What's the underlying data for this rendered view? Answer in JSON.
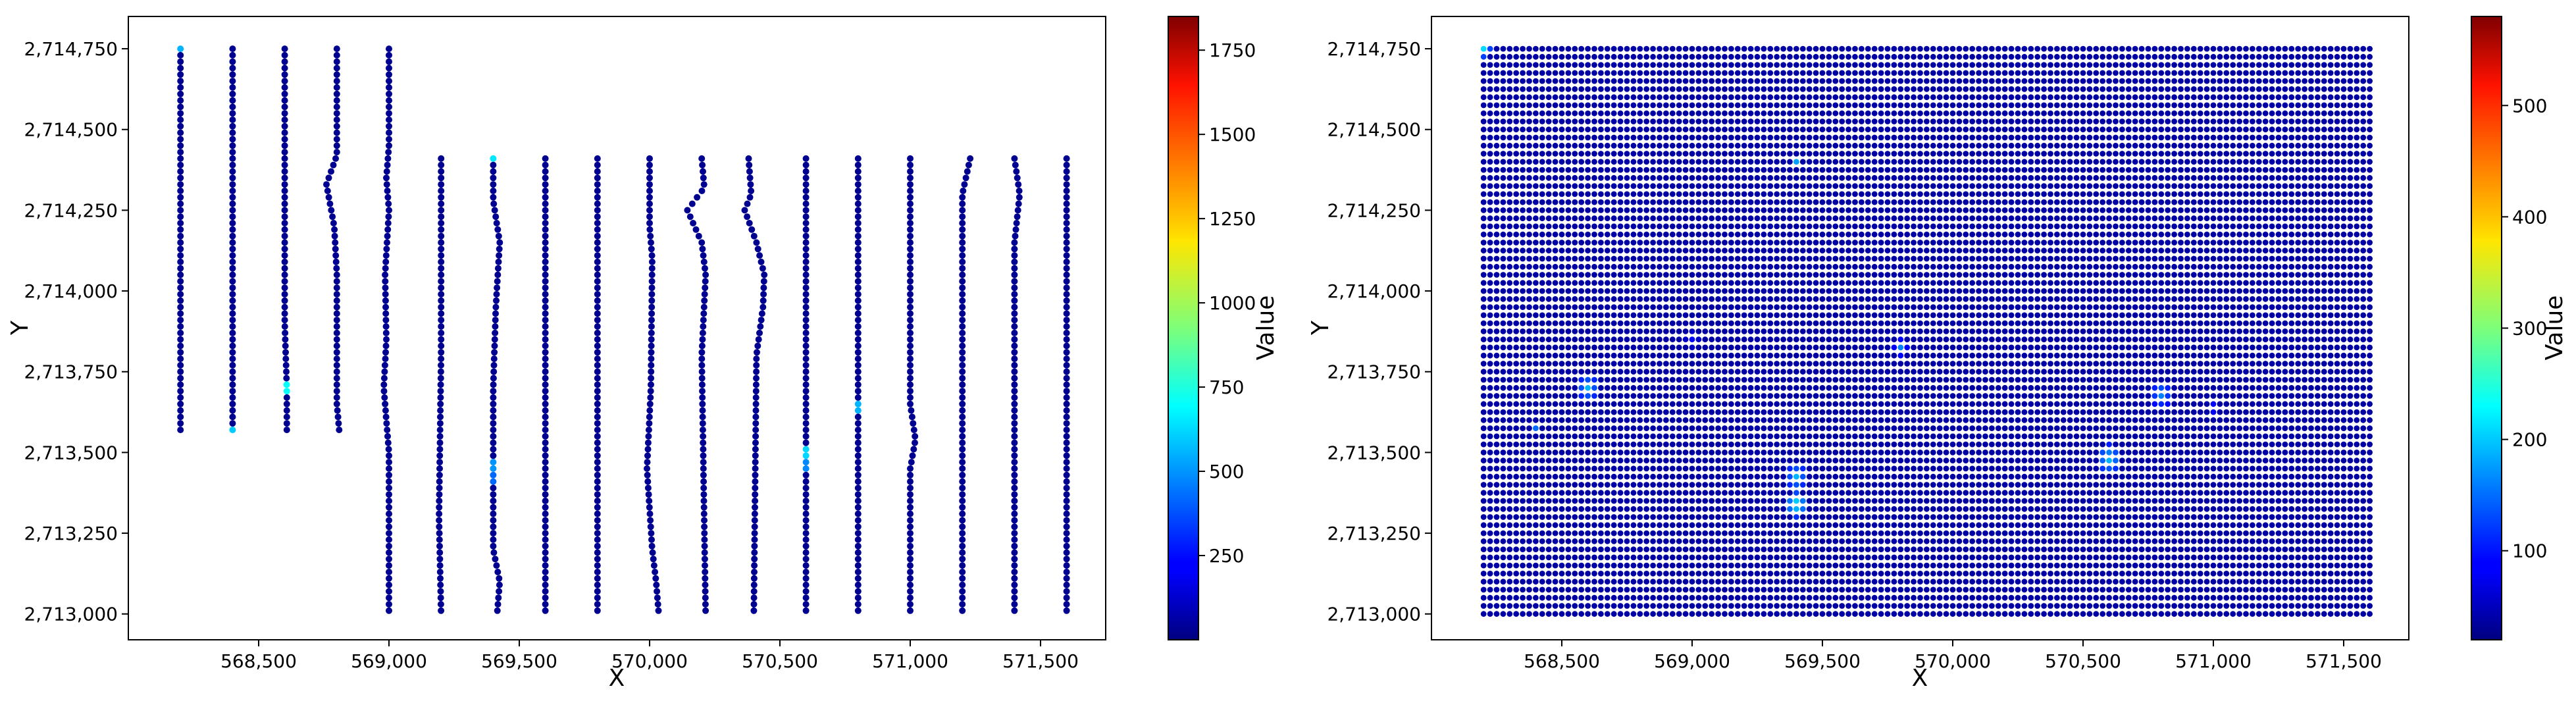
{
  "chart_data": [
    {
      "type": "scatter",
      "xlabel": "X",
      "ylabel": "Y",
      "xlim": [
        568000,
        571750
      ],
      "ylim": [
        2712920,
        2714850
      ],
      "xticks": [
        568500,
        569000,
        569500,
        570000,
        570500,
        571000,
        571500
      ],
      "xtick_labels": [
        "568,500",
        "569,000",
        "569,500",
        "570,000",
        "570,500",
        "571,000",
        "571,500"
      ],
      "yticks": [
        2713000,
        2713250,
        2713500,
        2713750,
        2714000,
        2714250,
        2714500,
        2714750
      ],
      "ytick_labels": [
        "2,713,000",
        "2,713,250",
        "2,713,500",
        "2,713,750",
        "2,714,000",
        "2,714,250",
        "2,714,500",
        "2,714,750"
      ],
      "grid": false,
      "colorbar": {
        "label": "Value",
        "colormap": "jet",
        "range": [
          0,
          1850
        ],
        "ticks": [
          250,
          500,
          750,
          1000,
          1250,
          1500,
          1750
        ],
        "tick_labels": [
          "250",
          "500",
          "750",
          "1000",
          "1250",
          "1500",
          "1750"
        ]
      },
      "survey_lines": [
        {
          "x": 568200,
          "y_range": [
            2713560,
            2714750
          ],
          "wiggle": []
        },
        {
          "x": 568400,
          "y_range": [
            2713560,
            2714750
          ],
          "wiggle": []
        },
        {
          "x": 568600,
          "y_range": [
            2713560,
            2714750
          ],
          "wiggle": [
            [
              2714500,
              0
            ],
            [
              2713900,
              0
            ],
            [
              2713700,
              8
            ]
          ]
        },
        {
          "x": 568800,
          "y_range": [
            2713560,
            2714750
          ],
          "wiggle": [
            [
              2714750,
              0
            ],
            [
              2714420,
              0
            ],
            [
              2714330,
              -40
            ],
            [
              2714200,
              -10
            ],
            [
              2714050,
              0
            ],
            [
              2713650,
              0
            ],
            [
              2713560,
              10
            ]
          ]
        },
        {
          "x": 569000,
          "y_range": [
            2713000,
            2714750
          ],
          "wiggle": [
            [
              2714750,
              0
            ],
            [
              2714450,
              0
            ],
            [
              2714350,
              -10
            ],
            [
              2714250,
              0
            ],
            [
              2714050,
              -15
            ],
            [
              2713850,
              -10
            ],
            [
              2713700,
              -20
            ],
            [
              2713500,
              0
            ],
            [
              2713000,
              0
            ]
          ]
        },
        {
          "x": 569200,
          "y_range": [
            2713000,
            2714410
          ],
          "wiggle": [
            [
              2714410,
              0
            ],
            [
              2713800,
              0
            ],
            [
              2713300,
              -8
            ],
            [
              2713000,
              0
            ]
          ]
        },
        {
          "x": 569400,
          "y_range": [
            2713000,
            2714410
          ],
          "wiggle": [
            [
              2714410,
              0
            ],
            [
              2714280,
              0
            ],
            [
              2714150,
              25
            ],
            [
              2713950,
              10
            ],
            [
              2713700,
              0
            ],
            [
              2713200,
              0
            ],
            [
              2713100,
              25
            ],
            [
              2713000,
              15
            ]
          ]
        },
        {
          "x": 569600,
          "y_range": [
            2713000,
            2714410
          ],
          "wiggle": []
        },
        {
          "x": 569800,
          "y_range": [
            2713000,
            2714410
          ],
          "wiggle": []
        },
        {
          "x": 570000,
          "y_range": [
            2713000,
            2714410
          ],
          "wiggle": [
            [
              2714410,
              0
            ],
            [
              2714200,
              0
            ],
            [
              2714100,
              10
            ],
            [
              2713700,
              5
            ],
            [
              2713450,
              -10
            ],
            [
              2713200,
              10
            ],
            [
              2713100,
              25
            ],
            [
              2713000,
              35
            ]
          ]
        },
        {
          "x": 570200,
          "y_range": [
            2713000,
            2714410
          ],
          "wiggle": [
            [
              2714410,
              0
            ],
            [
              2714320,
              10
            ],
            [
              2714250,
              -55
            ],
            [
              2714150,
              0
            ],
            [
              2714050,
              15
            ],
            [
              2713800,
              0
            ],
            [
              2713000,
              15
            ]
          ]
        },
        {
          "x": 570400,
          "y_range": [
            2713000,
            2714410
          ],
          "wiggle": [
            [
              2714410,
              -20
            ],
            [
              2714300,
              -10
            ],
            [
              2714250,
              -35
            ],
            [
              2714150,
              10
            ],
            [
              2714050,
              40
            ],
            [
              2713950,
              35
            ],
            [
              2713800,
              10
            ],
            [
              2713000,
              0
            ]
          ]
        },
        {
          "x": 570600,
          "y_range": [
            2713000,
            2714410
          ],
          "wiggle": []
        },
        {
          "x": 570800,
          "y_range": [
            2713000,
            2714410
          ],
          "wiggle": []
        },
        {
          "x": 571000,
          "y_range": [
            2713000,
            2714410
          ],
          "wiggle": [
            [
              2714410,
              0
            ],
            [
              2713650,
              0
            ],
            [
              2713540,
              20
            ],
            [
              2713450,
              0
            ],
            [
              2713150,
              0
            ],
            [
              2713000,
              0
            ]
          ]
        },
        {
          "x": 571200,
          "y_range": [
            2713000,
            2714410
          ],
          "wiggle": [
            [
              2714410,
              30
            ],
            [
              2714300,
              0
            ],
            [
              2713000,
              0
            ]
          ]
        },
        {
          "x": 571400,
          "y_range": [
            2713000,
            2714410
          ],
          "wiggle": [
            [
              2714410,
              0
            ],
            [
              2714300,
              20
            ],
            [
              2714150,
              0
            ],
            [
              2713000,
              0
            ]
          ]
        },
        {
          "x": 571600,
          "y_range": [
            2713000,
            2714410
          ],
          "wiggle": []
        }
      ],
      "sample_spacing_y": 20,
      "base_value": 30,
      "hotspots": [
        {
          "x": 568200,
          "y": 2714750,
          "value": 560
        },
        {
          "x": 568400,
          "y": 2713560,
          "value": 600
        },
        {
          "x": 568600,
          "y": 2713700,
          "value": 700
        },
        {
          "x": 569400,
          "y": 2714410,
          "value": 650
        },
        {
          "x": 569400,
          "y": 2713460,
          "value": 500
        },
        {
          "x": 569400,
          "y": 2713420,
          "value": 420
        },
        {
          "x": 570600,
          "y": 2713500,
          "value": 620
        },
        {
          "x": 570600,
          "y": 2713460,
          "value": 480
        },
        {
          "x": 570800,
          "y": 2713640,
          "value": 560
        }
      ]
    },
    {
      "type": "scatter",
      "xlabel": "X",
      "ylabel": "Y",
      "xlim": [
        568000,
        571750
      ],
      "ylim": [
        2712920,
        2714850
      ],
      "xticks": [
        568500,
        569000,
        569500,
        570000,
        570500,
        571000,
        571500
      ],
      "xtick_labels": [
        "568,500",
        "569,000",
        "569,500",
        "570,000",
        "570,500",
        "571,000",
        "571,500"
      ],
      "yticks": [
        2713000,
        2713250,
        2713500,
        2713750,
        2714000,
        2714250,
        2714500,
        2714750
      ],
      "ytick_labels": [
        "2,713,000",
        "2,713,250",
        "2,713,500",
        "2,713,750",
        "2,714,000",
        "2,714,250",
        "2,714,500",
        "2,714,750"
      ],
      "grid": false,
      "colorbar": {
        "label": "Value",
        "colormap": "jet",
        "range": [
          20,
          580
        ],
        "ticks": [
          100,
          200,
          300,
          400,
          500
        ],
        "tick_labels": [
          "100",
          "200",
          "300",
          "400",
          "500"
        ]
      },
      "grid_points": {
        "x_range": [
          568200,
          571600
        ],
        "y_range": [
          2713000,
          2714750
        ],
        "x_step": 25,
        "y_step": 25
      },
      "base_value": 40,
      "hotspots": [
        {
          "x": 568200,
          "y": 2714750,
          "value": 210,
          "radius": 30
        },
        {
          "x": 568600,
          "y": 2713700,
          "value": 190,
          "radius": 40
        },
        {
          "x": 568400,
          "y": 2713575,
          "value": 150,
          "radius": 20
        },
        {
          "x": 569400,
          "y": 2714400,
          "value": 180,
          "radius": 20
        },
        {
          "x": 569800,
          "y": 2713825,
          "value": 160,
          "radius": 25
        },
        {
          "x": 569400,
          "y": 2713425,
          "value": 190,
          "radius": 40
        },
        {
          "x": 569400,
          "y": 2713340,
          "value": 230,
          "radius": 40
        },
        {
          "x": 570600,
          "y": 2713480,
          "value": 200,
          "radius": 45
        },
        {
          "x": 570800,
          "y": 2713680,
          "value": 170,
          "radius": 40
        },
        {
          "x": 571000,
          "y": 2713640,
          "value": 110,
          "radius": 25
        },
        {
          "x": 569000,
          "y": 2713850,
          "value": 90,
          "radius": 25
        }
      ]
    }
  ]
}
